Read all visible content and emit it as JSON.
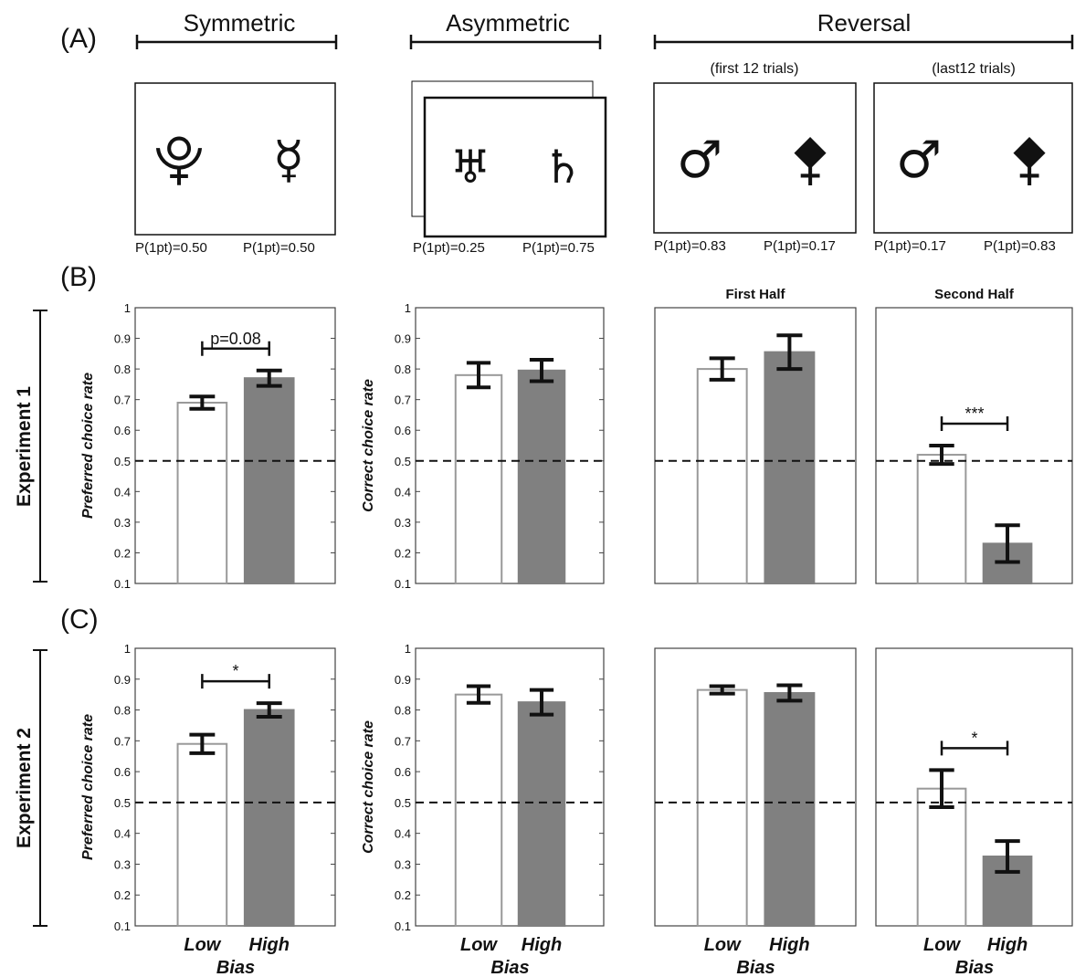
{
  "panel_letters": [
    "(A)",
    "(B)",
    "(C)"
  ],
  "stimuli": {
    "groups": [
      {
        "name": "Symmetric"
      },
      {
        "name": "Asymmetric"
      },
      {
        "name": "Reversal"
      }
    ],
    "cards": [
      {
        "subtitle": "",
        "symbols": [
          "⯓",
          "☿"
        ],
        "probs": [
          "P(1pt)=0.50",
          "P(1pt)=0.50"
        ]
      },
      {
        "subtitle": "",
        "symbols": [
          "♅",
          "♄"
        ],
        "probs": [
          "P(1pt)=0.25",
          "P(1pt)=0.75"
        ]
      },
      {
        "subtitle": "(first 12 trials)",
        "symbols": [
          "♂",
          "⯞"
        ],
        "probs": [
          "P(1pt)=0.83",
          "P(1pt)=0.17"
        ]
      },
      {
        "subtitle": "(last12 trials)",
        "symbols": [
          "♂",
          "⯞"
        ],
        "probs": [
          "P(1pt)=0.17",
          "P(1pt)=0.83"
        ]
      }
    ]
  },
  "experiments": [
    "Experiment 1",
    "Experiment 2"
  ],
  "colors": {
    "low_bar": "#ffffff",
    "high_bar": "#808080",
    "error": "#111111",
    "ref_line": "#111111"
  },
  "chart_data": [
    {
      "type": "bar",
      "experiment": "Experiment 1",
      "title": "",
      "ylabel": "Preferred choice rate",
      "xlabel": "",
      "categories": [
        "Low",
        "High"
      ],
      "values": [
        0.69,
        0.77
      ],
      "errors": [
        0.02,
        0.025
      ],
      "ylim": [
        0.1,
        1
      ],
      "yticks": [
        "0.1",
        "0.2",
        "0.3",
        "0.4",
        "0.5",
        "0.6",
        "0.7",
        "0.8",
        "0.9",
        "1"
      ],
      "reference_line": 0.5,
      "annotation": "p=0.08"
    },
    {
      "type": "bar",
      "experiment": "Experiment 1",
      "title": "",
      "ylabel": "Correct choice rate",
      "xlabel": "",
      "categories": [
        "Low",
        "High"
      ],
      "values": [
        0.78,
        0.795
      ],
      "errors": [
        0.04,
        0.035
      ],
      "ylim": [
        0.1,
        1
      ],
      "yticks": [
        "0.1",
        "0.2",
        "0.3",
        "0.4",
        "0.5",
        "0.6",
        "0.7",
        "0.8",
        "0.9",
        "1"
      ],
      "reference_line": 0.5,
      "annotation": ""
    },
    {
      "type": "bar",
      "experiment": "Experiment 1",
      "title": "First Half",
      "ylabel": "",
      "xlabel": "",
      "categories": [
        "Low",
        "High"
      ],
      "values": [
        0.8,
        0.855
      ],
      "errors": [
        0.035,
        0.055
      ],
      "ylim": [
        0.1,
        1
      ],
      "yticks": [],
      "reference_line": 0.5,
      "annotation": ""
    },
    {
      "type": "bar",
      "experiment": "Experiment 1",
      "title": "Second Half",
      "ylabel": "",
      "xlabel": "",
      "categories": [
        "Low",
        "High"
      ],
      "values": [
        0.52,
        0.23
      ],
      "errors": [
        0.03,
        0.06
      ],
      "ylim": [
        0.1,
        1
      ],
      "yticks": [],
      "reference_line": 0.5,
      "annotation": "***"
    },
    {
      "type": "bar",
      "experiment": "Experiment 2",
      "title": "",
      "ylabel": "Preferred choice rate",
      "xlabel": "Bias",
      "categories": [
        "Low",
        "High"
      ],
      "values": [
        0.69,
        0.8
      ],
      "errors": [
        0.03,
        0.022
      ],
      "ylim": [
        0.1,
        1
      ],
      "yticks": [
        "0.1",
        "0.2",
        "0.3",
        "0.4",
        "0.5",
        "0.6",
        "0.7",
        "0.8",
        "0.9",
        "1"
      ],
      "reference_line": 0.5,
      "annotation": "*"
    },
    {
      "type": "bar",
      "experiment": "Experiment 2",
      "title": "",
      "ylabel": "Correct choice rate",
      "xlabel": "Bias",
      "categories": [
        "Low",
        "High"
      ],
      "values": [
        0.85,
        0.825
      ],
      "errors": [
        0.027,
        0.04
      ],
      "ylim": [
        0.1,
        1
      ],
      "yticks": [
        "0.1",
        "0.2",
        "0.3",
        "0.4",
        "0.5",
        "0.6",
        "0.7",
        "0.8",
        "0.9",
        "1"
      ],
      "reference_line": 0.5,
      "annotation": ""
    },
    {
      "type": "bar",
      "experiment": "Experiment 2",
      "title": "",
      "ylabel": "",
      "xlabel": "Bias",
      "categories": [
        "Low",
        "High"
      ],
      "values": [
        0.865,
        0.855
      ],
      "errors": [
        0.012,
        0.025
      ],
      "ylim": [
        0.1,
        1
      ],
      "yticks": [],
      "reference_line": 0.5,
      "annotation": ""
    },
    {
      "type": "bar",
      "experiment": "Experiment 2",
      "title": "",
      "ylabel": "",
      "xlabel": "Bias",
      "categories": [
        "Low",
        "High"
      ],
      "values": [
        0.545,
        0.325
      ],
      "errors": [
        0.06,
        0.05
      ],
      "ylim": [
        0.1,
        1
      ],
      "yticks": [],
      "reference_line": 0.5,
      "annotation": "*"
    }
  ]
}
